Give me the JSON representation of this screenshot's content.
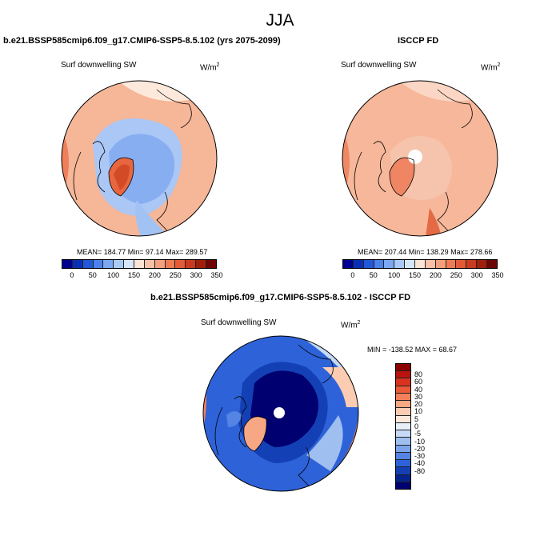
{
  "figure_title": "JJA",
  "panel_left": {
    "title": "b.e21.BSSP585cmip6.f09_g17.CMIP6-SSP5-8.5.102 (yrs 2075-2099)",
    "variable": "Surf downwelling SW",
    "units": "W/m",
    "units_exp": "2",
    "stats": "MEAN= 184.77  Min=  97.14  Max= 289.57"
  },
  "panel_right": {
    "title": "ISCCP FD",
    "variable": "Surf downwelling SW",
    "units": "W/m",
    "units_exp": "2",
    "stats": "MEAN= 207.44  Min= 138.29  Max= 278.66"
  },
  "panel_diff": {
    "title": "b.e21.BSSP585cmip6.f09_g17.CMIP6-SSP5-8.5.102 - ISCCP FD",
    "variable": "Surf downwelling SW",
    "units": "W/m",
    "units_exp": "2",
    "stats": "MIN = -138.52  MAX =  68.67"
  },
  "colorbar_abs": {
    "colors": [
      "#00008f",
      "#0a2fb5",
      "#2257d8",
      "#4d82ec",
      "#7ba7f3",
      "#abc9f7",
      "#d6e6fb",
      "#fbe3d6",
      "#f9c2a8",
      "#f5a07d",
      "#ef7b55",
      "#e45a36",
      "#c93b1e",
      "#a01f0c",
      "#6e0505"
    ],
    "ticks": [
      "0",
      "50",
      "100",
      "150",
      "200",
      "250",
      "300",
      "350"
    ]
  },
  "colorbar_diff": {
    "colors": [
      "#8b0000",
      "#b8140e",
      "#d93320",
      "#ea5a37",
      "#f3805a",
      "#f8a784",
      "#fbccb2",
      "#fde9dc",
      "#e7effb",
      "#c6d9f7",
      "#9fbff1",
      "#7aa5ec",
      "#5484e4",
      "#2e62d8",
      "#1440b6",
      "#04238c",
      "#000070"
    ],
    "ticks": [
      "80",
      "60",
      "40",
      "30",
      "20",
      "10",
      "5",
      "0",
      "-5",
      "-10",
      "-20",
      "-30",
      "-40",
      "-80"
    ]
  }
}
